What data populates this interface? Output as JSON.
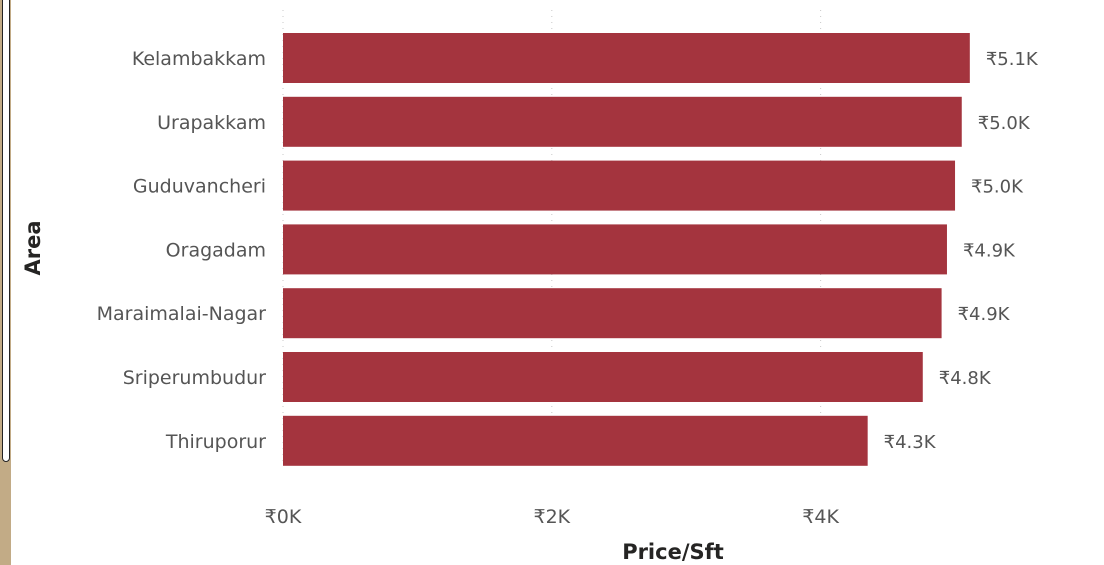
{
  "chart_data": {
    "type": "bar",
    "orientation": "horizontal",
    "categories": [
      "Kelambakkam",
      "Urapakkam",
      "Guduvancheri",
      "Oragadam",
      "Maraimalai-Nagar",
      "Sriperumbudur",
      "Thiruporur"
    ],
    "values": [
      5110,
      5050,
      5000,
      4940,
      4900,
      4760,
      4350
    ],
    "data_labels": [
      "₹5.1K",
      "₹5.0K",
      "₹5.0K",
      "₹4.9K",
      "₹4.9K",
      "₹4.8K",
      "₹4.3K"
    ],
    "xlabel": "Price/Sft",
    "ylabel": "Area",
    "xlim": [
      0,
      5900
    ],
    "x_ticks": [
      0,
      2000,
      4000
    ],
    "x_tick_labels": [
      "₹0K",
      "₹2K",
      "₹4K"
    ],
    "bar_color": "#a4343e",
    "grid": true
  }
}
